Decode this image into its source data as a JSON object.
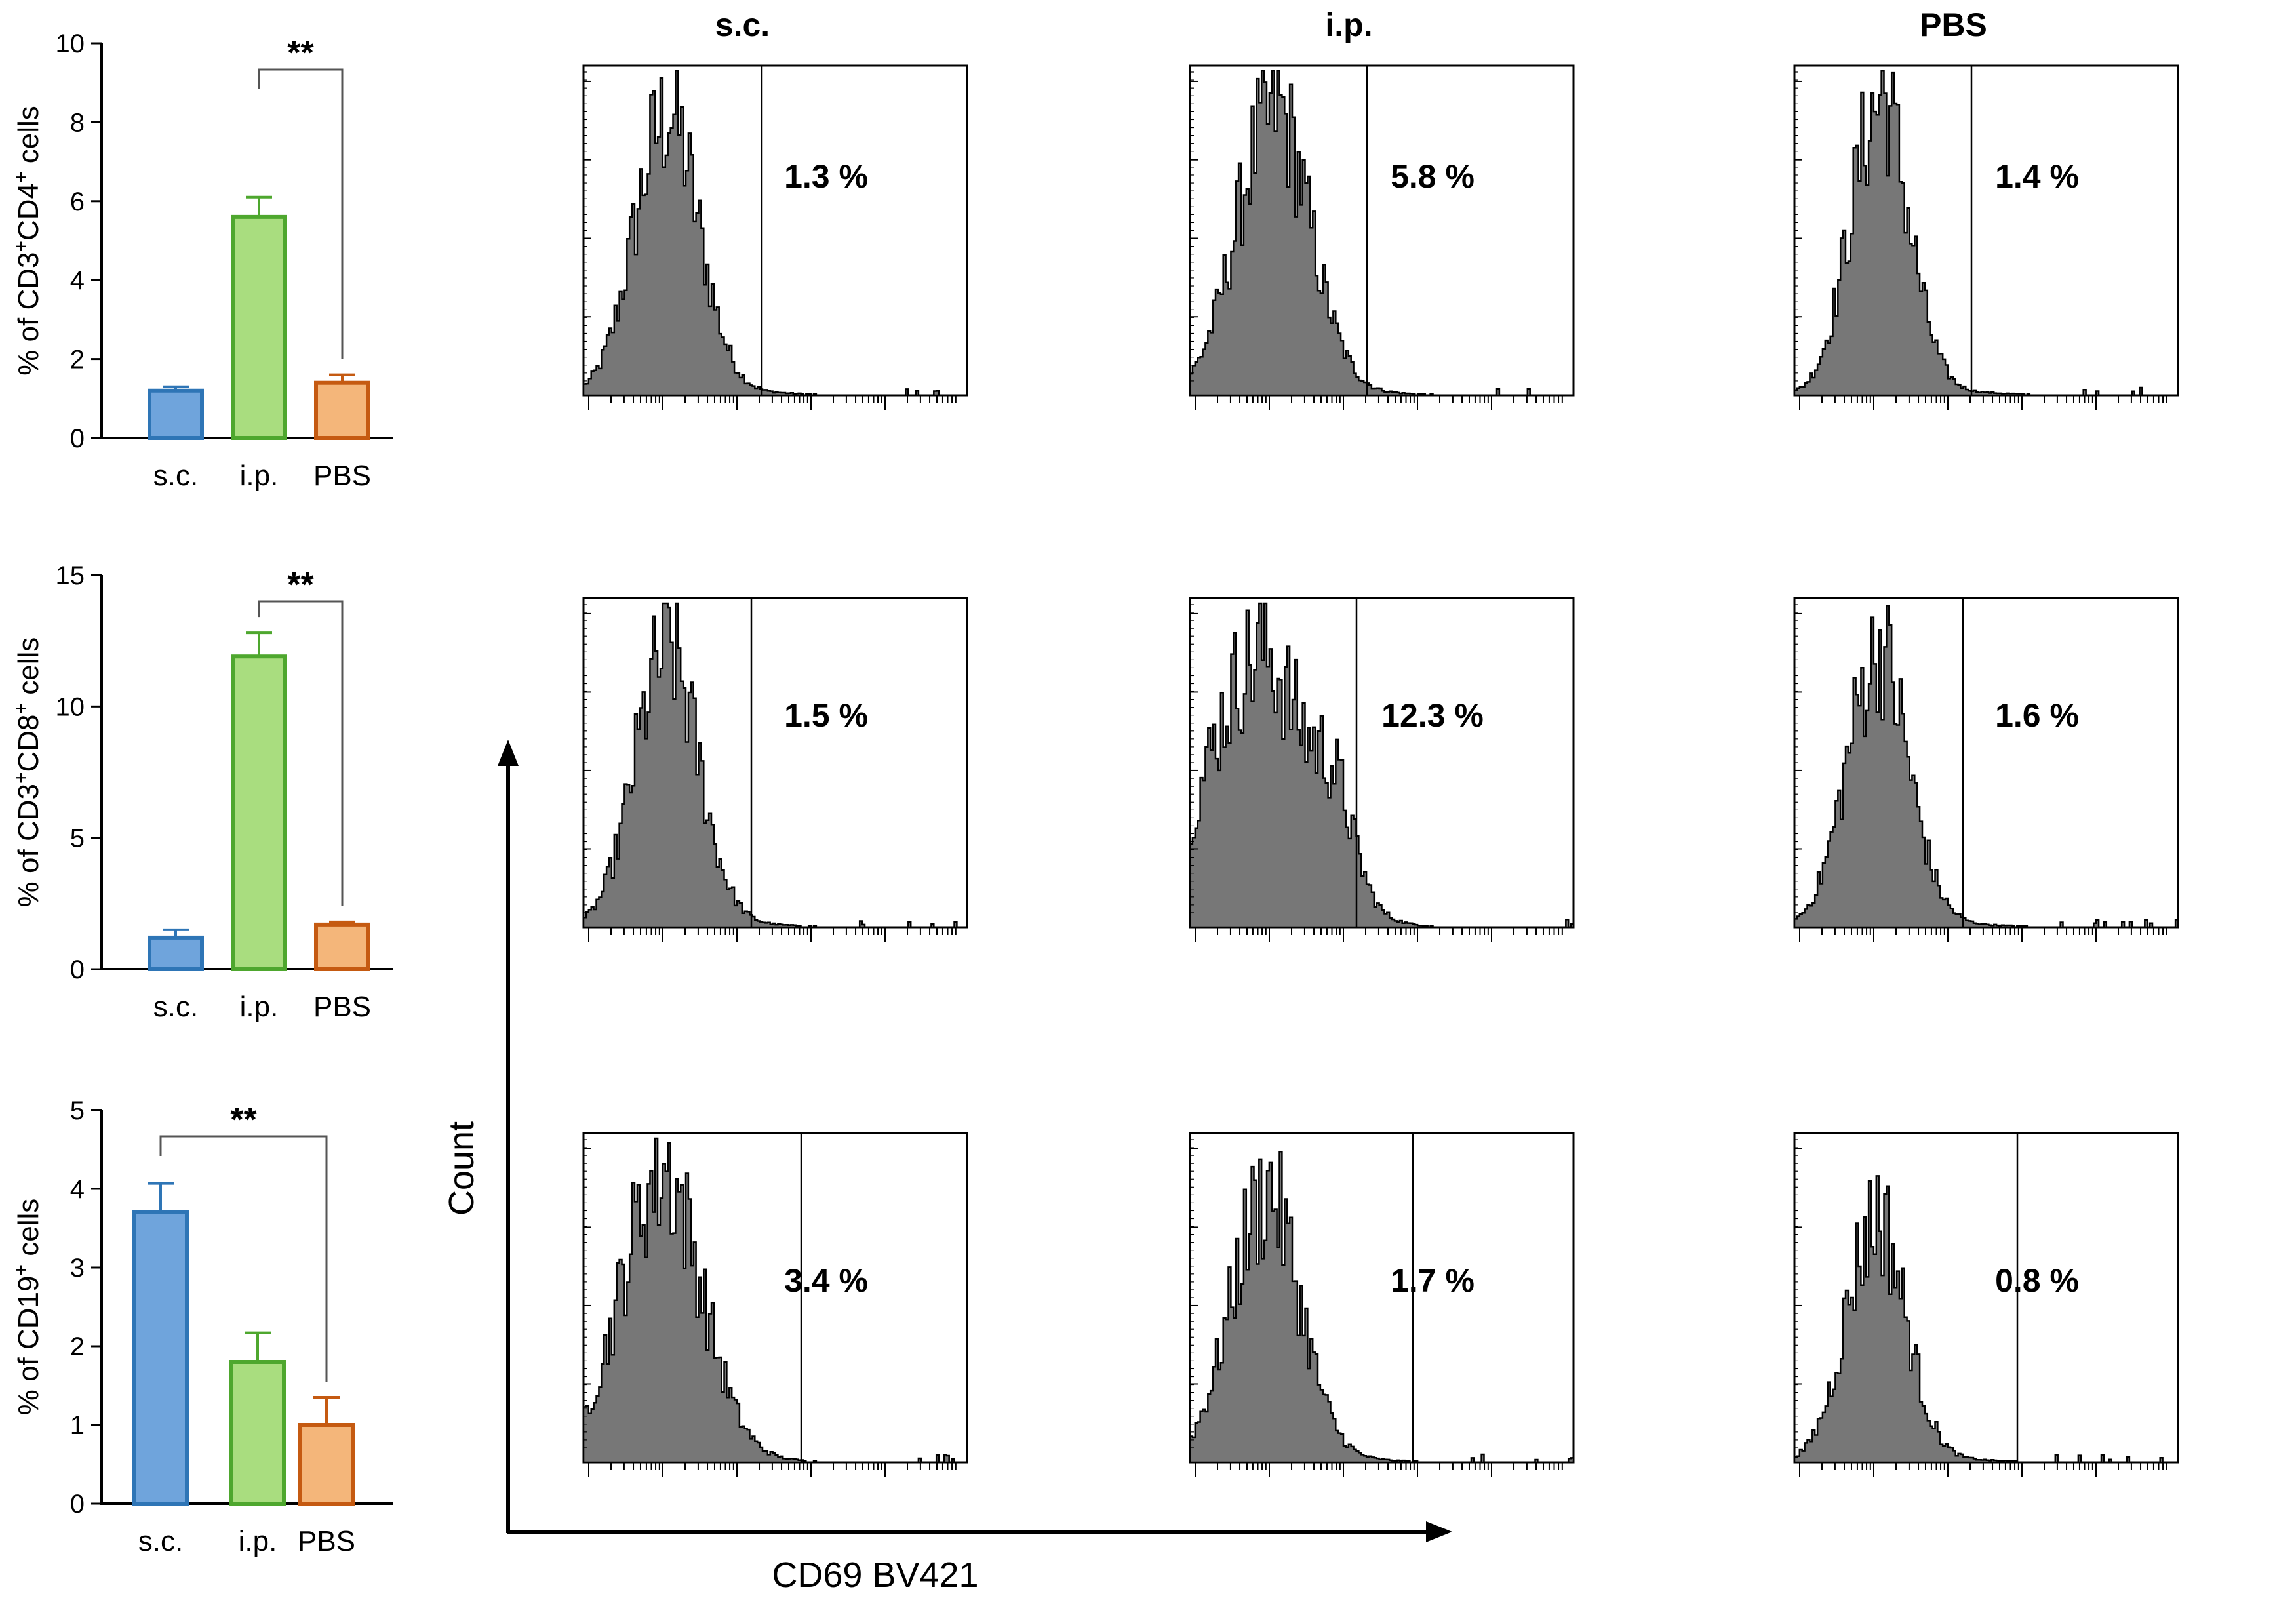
{
  "chart_data": [
    {
      "type": "bar",
      "categories": [
        "s.c.",
        "i.p.",
        "PBS"
      ],
      "values": [
        1.2,
        5.6,
        1.4
      ],
      "errors": [
        0.1,
        0.5,
        0.2
      ],
      "ylabel_parts": [
        "% of CD3",
        "+",
        "CD4",
        "+",
        " cells"
      ],
      "ylim": [
        0,
        10
      ],
      "yticks": [
        "0",
        "2",
        "4",
        "6",
        "8",
        "10"
      ],
      "significance": {
        "from": "i.p.",
        "to": "PBS",
        "label": "**"
      }
    },
    {
      "type": "bar",
      "categories": [
        "s.c.",
        "i.p.",
        "PBS"
      ],
      "values": [
        1.2,
        11.9,
        1.7
      ],
      "errors": [
        0.3,
        0.9,
        0.1
      ],
      "ylabel_parts": [
        "% of CD3",
        "+",
        "CD8",
        "+",
        " cells"
      ],
      "ylim": [
        0,
        15
      ],
      "yticks": [
        "0",
        "5",
        "10",
        "15"
      ],
      "significance": {
        "from": "i.p.",
        "to": "PBS",
        "label": "**"
      }
    },
    {
      "type": "bar",
      "categories": [
        "s.c.",
        "i.p.",
        "PBS"
      ],
      "values": [
        3.7,
        1.8,
        1.0
      ],
      "errors": [
        0.37,
        0.37,
        0.35
      ],
      "ylabel_parts": [
        "% of CD19",
        "+",
        " cells"
      ],
      "ylim": [
        0,
        5
      ],
      "yticks": [
        "0",
        "1",
        "2",
        "3",
        "4",
        "5"
      ],
      "significance": {
        "from": "s.c.",
        "to": "PBS",
        "label": "**"
      }
    },
    {
      "type": "histogram-grid",
      "columns": [
        "s.c.",
        "i.p.",
        "PBS"
      ],
      "gated_percent": [
        [
          "1.3 %",
          "5.8 %",
          "1.4 %"
        ],
        [
          "1.5 %",
          "12.3 %",
          "1.6 %"
        ],
        [
          "3.4 %",
          "1.7 %",
          "0.8 %"
        ]
      ],
      "xlabel": "CD69 BV421",
      "ylabel": "Count"
    }
  ],
  "colors": {
    "sc_fill": "#6fa4dc",
    "sc_stroke": "#2e75b6",
    "ip_fill": "#a9dd7f",
    "ip_stroke": "#4ea72e",
    "pbs_fill": "#f4b67a",
    "pbs_stroke": "#c55a11",
    "histogram_fill": "#777777"
  }
}
